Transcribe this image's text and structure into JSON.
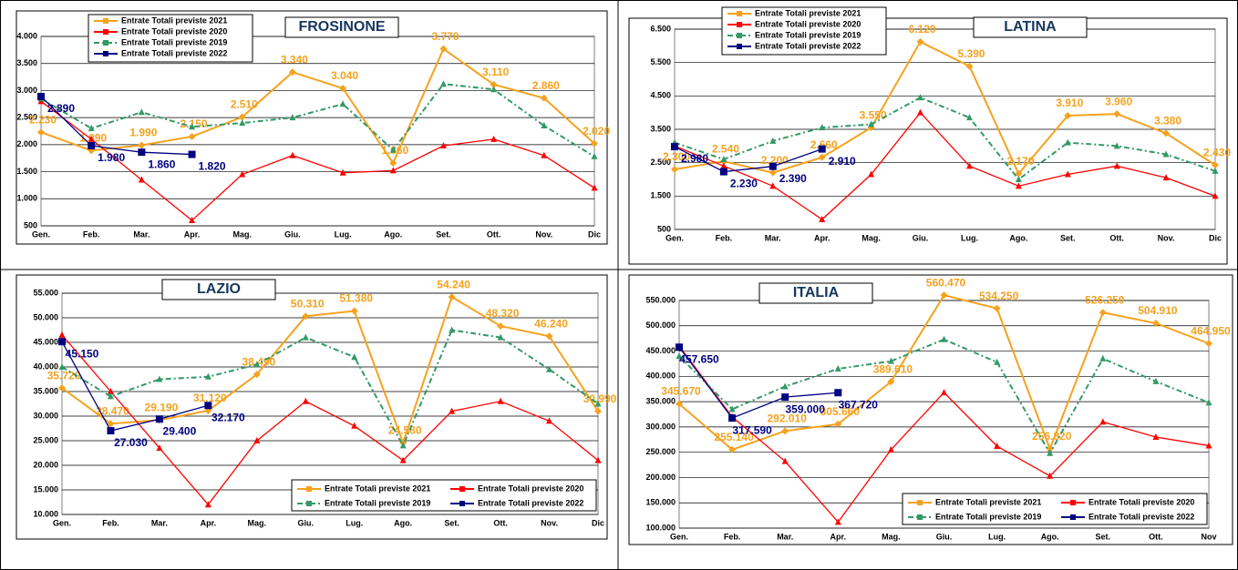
{
  "chart_data": [
    {
      "type": "line",
      "title": "FROSINONE",
      "legend": "top-left",
      "grid": true,
      "categories": [
        "Gen.",
        "Feb.",
        "Mar.",
        "Apr.",
        "Mag.",
        "Giu.",
        "Lug.",
        "Ago.",
        "Set.",
        "Ott.",
        "Nov.",
        "Dic"
      ],
      "ylim": [
        500,
        4000
      ],
      "yticks": [
        500,
        {
          "value": 1000,
          "label": "1.000"
        },
        {
          "value": 1500,
          "label": "1.500"
        },
        {
          "value": 2000,
          "label": "2.000"
        },
        {
          "value": 2500,
          "label": "2.500"
        },
        {
          "value": 3000,
          "label": "3.000"
        },
        {
          "value": 3500,
          "label": "3.500"
        },
        {
          "value": 4000,
          "label": "4.000"
        }
      ],
      "series": [
        {
          "name": "Entrate Totali previste 2021",
          "color": "#f5a21e",
          "values": [
            2230,
            1890,
            1990,
            2150,
            2510,
            3340,
            3040,
            1660,
            3770,
            3110,
            2860,
            2020
          ],
          "value_labels": [
            "2.230",
            "1.890",
            "1.990",
            "2.150",
            "2.510",
            "3.340",
            "3.040",
            "1.660",
            "3.770",
            "3.110",
            "2.860",
            "2.020"
          ]
        },
        {
          "name": "Entrate Totali previste 2020",
          "color": "#ff0000",
          "values": [
            2800,
            2100,
            1350,
            600,
            1450,
            1800,
            1480,
            1520,
            1980,
            2100,
            1800,
            1200
          ]
        },
        {
          "name": "Entrate Totali previste 2019",
          "color": "#339966",
          "values": [
            2850,
            2300,
            2600,
            2330,
            2400,
            2500,
            2750,
            1900,
            3120,
            3020,
            2350,
            1780
          ]
        },
        {
          "name": "Entrate Totali previste 2022",
          "color": "#000080",
          "values": [
            2890,
            1980,
            1860,
            1820,
            null,
            null,
            null,
            null,
            null,
            null,
            null,
            null
          ],
          "value_labels": [
            "2.890",
            "1.980",
            "1.860",
            "1.820",
            null,
            null,
            null,
            null,
            null,
            null,
            null,
            null
          ]
        }
      ]
    },
    {
      "type": "line",
      "title": "LATINA",
      "legend": "top-left",
      "grid": true,
      "categories": [
        "Gen.",
        "Feb.",
        "Mar.",
        "Apr.",
        "Mag.",
        "Giu.",
        "Lug.",
        "Ago.",
        "Set.",
        "Ott.",
        "Nov.",
        "Dic"
      ],
      "ylim": [
        500,
        6500
      ],
      "yticks": [
        500,
        {
          "value": 1500,
          "label": "1.500"
        },
        {
          "value": 2500,
          "label": "2.500"
        },
        {
          "value": 3500,
          "label": "3.500"
        },
        {
          "value": 4500,
          "label": "4.500"
        },
        {
          "value": 5500,
          "label": "5.500"
        },
        {
          "value": 6500,
          "label": "6.500"
        }
      ],
      "series": [
        {
          "name": "Entrate Totali previste 2021",
          "color": "#f5a21e",
          "values": [
            2300,
            2540,
            2200,
            2660,
            3550,
            6120,
            5390,
            2170,
            3910,
            3960,
            3380,
            2430
          ],
          "value_labels": [
            "2.300",
            "2.540",
            "2.200",
            "2.660",
            "3.550",
            "6.120",
            "5.390",
            "2.170",
            "3.910",
            "3.960",
            "3.380",
            "2.430"
          ]
        },
        {
          "name": "Entrate Totali previste 2020",
          "color": "#ff0000",
          "values": [
            3000,
            2400,
            1800,
            800,
            2150,
            4000,
            2400,
            1800,
            2150,
            2400,
            2050,
            1500
          ]
        },
        {
          "name": "Entrate Totali previste 2019",
          "color": "#339966",
          "values": [
            3100,
            2600,
            3150,
            3550,
            3650,
            4450,
            3850,
            2000,
            3100,
            3000,
            2750,
            2250
          ]
        },
        {
          "name": "Entrate Totali previste 2022",
          "color": "#000080",
          "values": [
            2980,
            2230,
            2390,
            2910,
            null,
            null,
            null,
            null,
            null,
            null,
            null,
            null
          ],
          "value_labels": [
            "2.980",
            "2.230",
            "2.390",
            "2.910",
            null,
            null,
            null,
            null,
            null,
            null,
            null,
            null
          ]
        }
      ]
    },
    {
      "type": "line",
      "title": "LAZIO",
      "legend": "bottom-right",
      "grid": true,
      "categories": [
        "Gen.",
        "Feb.",
        "Mar.",
        "Apr.",
        "Mag.",
        "Giu.",
        "Lug.",
        "Ago.",
        "Set.",
        "Ott.",
        "Nov.",
        "Dic"
      ],
      "ylim": [
        10000,
        55000
      ],
      "yticks": [
        {
          "value": 10000,
          "label": "10.000"
        },
        {
          "value": 15000,
          "label": "15.000"
        },
        {
          "value": 20000,
          "label": "20.000"
        },
        {
          "value": 25000,
          "label": "25.000"
        },
        {
          "value": 30000,
          "label": "30.000"
        },
        {
          "value": 35000,
          "label": "35.000"
        },
        {
          "value": 40000,
          "label": "40.000"
        },
        {
          "value": 45000,
          "label": "45.000"
        },
        {
          "value": 50000,
          "label": "50.000"
        },
        {
          "value": 55000,
          "label": "55.000"
        }
      ],
      "series": [
        {
          "name": "Entrate Totali previste 2021",
          "color": "#f5a21e",
          "values": [
            35720,
            28470,
            29190,
            31120,
            38490,
            50310,
            51380,
            24580,
            54240,
            48320,
            46240,
            30990
          ],
          "value_labels": [
            "35.720",
            "28.470",
            "29.190",
            "31.120",
            "38.490",
            "50.310",
            "51.380",
            "24.580",
            "54.240",
            "48.320",
            "46.240",
            "30.990"
          ]
        },
        {
          "name": "Entrate Totali previste 2020",
          "color": "#ff0000",
          "values": [
            46500,
            35000,
            23500,
            12000,
            25000,
            33000,
            28000,
            21000,
            31000,
            33000,
            29000,
            21000
          ]
        },
        {
          "name": "Entrate Totali previste 2019",
          "color": "#339966",
          "values": [
            40000,
            34000,
            37500,
            38000,
            40500,
            46000,
            42000,
            24000,
            47500,
            46000,
            39500,
            32500
          ]
        },
        {
          "name": "Entrate Totali previste 2022",
          "color": "#000080",
          "values": [
            45150,
            27030,
            29400,
            32170,
            null,
            null,
            null,
            null,
            null,
            null,
            null,
            null
          ],
          "value_labels": [
            "45.150",
            "27.030",
            "29.400",
            "32.170",
            null,
            null,
            null,
            null,
            null,
            null,
            null,
            null
          ]
        }
      ]
    },
    {
      "type": "line",
      "title": "ITALIA",
      "legend": "bottom-right",
      "grid": true,
      "categories": [
        "Gen.",
        "Feb.",
        "Mar.",
        "Apr.",
        "Mag.",
        "Giu.",
        "Lug.",
        "Ago.",
        "Set.",
        "Ott.",
        "Nov"
      ],
      "ylim": [
        100000,
        550000
      ],
      "yticks": [
        {
          "value": 100000,
          "label": "100.000"
        },
        {
          "value": 150000,
          "label": "150.000"
        },
        {
          "value": 200000,
          "label": "200.000"
        },
        {
          "value": 250000,
          "label": "250.000"
        },
        {
          "value": 300000,
          "label": "300.000"
        },
        {
          "value": 350000,
          "label": "350.000"
        },
        {
          "value": 400000,
          "label": "400.000"
        },
        {
          "value": 450000,
          "label": "450.000"
        },
        {
          "value": 500000,
          "label": "500.000"
        },
        {
          "value": 550000,
          "label": "550.000"
        }
      ],
      "series": [
        {
          "name": "Entrate Totali previste 2021",
          "color": "#f5a21e",
          "values": [
            345670,
            255140,
            292010,
            305660,
            389610,
            560470,
            534250,
            256820,
            526250,
            504910,
            464950
          ],
          "value_labels": [
            "345.670",
            "255.140",
            "292.010",
            "305.660",
            "389.610",
            "560.470",
            "534.250",
            "256.820",
            "526.250",
            "504.910",
            "464.950"
          ]
        },
        {
          "name": "Entrate Totali previste 2020",
          "color": "#ff0000",
          "values": [
            460000,
            320000,
            232000,
            112000,
            255000,
            368000,
            262000,
            203000,
            310000,
            280000,
            263000
          ]
        },
        {
          "name": "Entrate Totali previste 2019",
          "color": "#339966",
          "values": [
            440000,
            335000,
            380000,
            415000,
            430000,
            473000,
            428000,
            248000,
            435000,
            390000,
            348000
          ]
        },
        {
          "name": "Entrate Totali previste 2022",
          "color": "#000080",
          "values": [
            457650,
            317590,
            359000,
            367720,
            null,
            null,
            null,
            null,
            null,
            null,
            null
          ],
          "value_labels": [
            "457.650",
            "317.590",
            "359.000",
            "367.720",
            null,
            null,
            null,
            null,
            null,
            null,
            null
          ]
        }
      ]
    }
  ]
}
